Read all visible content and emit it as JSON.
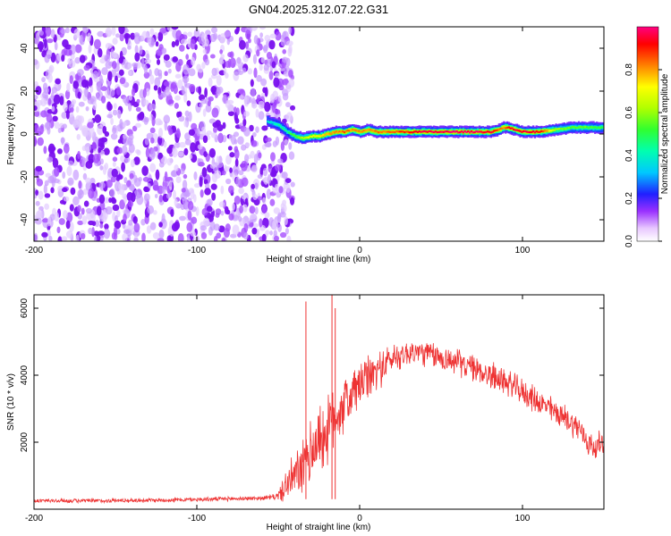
{
  "figure_title": "GN04.2025.312.07.22.G31",
  "chart_data": [
    {
      "type": "heatmap",
      "title": "GN04.2025.312.07.22.G31",
      "xlabel": "Height of straight line (km)",
      "ylabel": "Frequency (Hz)",
      "xlim": [
        -200,
        150
      ],
      "ylim": [
        -50,
        50
      ],
      "xticks": [
        -200,
        -100,
        0,
        100
      ],
      "xtick_labels": [
        "-200",
        "-100",
        "0",
        "100"
      ],
      "yticks": [
        -40,
        -20,
        0,
        20,
        40
      ],
      "ytick_labels": [
        "-40",
        "-20",
        "0",
        "20",
        "40"
      ],
      "noise_region_km": [
        -200,
        -47
      ],
      "signal_track": {
        "x": [
          -57,
          -50,
          -45,
          -40,
          -35,
          -30,
          -25,
          -20,
          -15,
          -10,
          -5,
          0,
          5,
          10,
          20,
          30,
          40,
          60,
          80,
          85,
          88,
          90,
          95,
          100,
          110,
          120,
          130,
          140,
          150
        ],
        "freq": [
          6,
          4,
          1,
          -1,
          -2,
          -1,
          -1,
          0,
          1,
          1,
          2,
          1,
          2,
          1,
          1,
          1,
          1,
          1,
          1,
          2,
          3,
          3,
          2,
          1,
          1,
          2,
          3,
          3,
          3
        ],
        "amplitude": [
          0.35,
          0.45,
          0.45,
          0.55,
          0.62,
          0.7,
          0.72,
          0.78,
          0.8,
          0.85,
          0.8,
          0.82,
          0.8,
          0.82,
          0.85,
          0.9,
          0.96,
          0.98,
          0.95,
          0.85,
          0.82,
          0.9,
          0.95,
          0.96,
          0.92,
          0.6,
          0.55,
          0.55,
          0.5
        ]
      },
      "colorbar": {
        "label": "Normalized spectral amplitude",
        "range": [
          0,
          1
        ],
        "ticks": [
          0.0,
          0.2,
          0.4,
          0.6,
          0.8
        ],
        "tick_labels": [
          "0.0",
          "0.2",
          "0.4",
          "0.6",
          "0.8"
        ]
      }
    },
    {
      "type": "line",
      "xlabel": "Height of straight line (km)",
      "ylabel": "SNR (10 * v/v)",
      "xlim": [
        -200,
        150
      ],
      "ylim": [
        0,
        6400
      ],
      "xticks": [
        -200,
        -100,
        0,
        100
      ],
      "xtick_labels": [
        "-200",
        "-100",
        "0",
        "100"
      ],
      "yticks": [
        2000,
        4000,
        6000
      ],
      "ytick_labels": [
        "2000",
        "4000",
        "6000"
      ],
      "color": "#ee3333",
      "series": [
        {
          "name": "SNR",
          "x": [
            -200,
            -190,
            -180,
            -170,
            -160,
            -150,
            -140,
            -130,
            -120,
            -110,
            -100,
            -90,
            -80,
            -70,
            -60,
            -55,
            -50,
            -45,
            -40,
            -35,
            -32,
            -30,
            -28,
            -25,
            -22,
            -20,
            -18,
            -15,
            -10,
            -5,
            0,
            5,
            10,
            15,
            20,
            25,
            30,
            35,
            40,
            45,
            50,
            55,
            60,
            65,
            70,
            75,
            80,
            85,
            90,
            95,
            100,
            105,
            110,
            115,
            120,
            125,
            130,
            135,
            140,
            145,
            150
          ],
          "y": [
            250,
            250,
            250,
            250,
            250,
            260,
            260,
            270,
            270,
            280,
            290,
            300,
            310,
            320,
            330,
            350,
            400,
            700,
            1000,
            1200,
            1500,
            1700,
            1900,
            2100,
            2200,
            2300,
            2500,
            2800,
            3100,
            3400,
            3700,
            3900,
            4100,
            4300,
            4500,
            4600,
            4650,
            4700,
            4650,
            4600,
            4500,
            4450,
            4400,
            4300,
            4200,
            4100,
            4000,
            3900,
            3800,
            3650,
            3500,
            3350,
            3200,
            3050,
            2900,
            2750,
            2600,
            2400,
            2000,
            1800,
            2100
          ],
          "noise_amplitude": [
            60,
            60,
            60,
            60,
            60,
            60,
            60,
            60,
            60,
            60,
            60,
            60,
            60,
            60,
            60,
            70,
            120,
            500,
            650,
            800,
            900,
            950,
            1000,
            1000,
            1000,
            1000,
            1000,
            950,
            850,
            800,
            700,
            650,
            600,
            500,
            450,
            400,
            380,
            380,
            380,
            380,
            380,
            380,
            380,
            380,
            380,
            380,
            420,
            400,
            380,
            380,
            380,
            380,
            380,
            380,
            380,
            380,
            380,
            380,
            380,
            380,
            380
          ]
        }
      ],
      "spikes": [
        {
          "x": -33,
          "y": 6200
        },
        {
          "x": -17,
          "y": 6400
        },
        {
          "x": -15,
          "y": 6000
        }
      ]
    }
  ]
}
